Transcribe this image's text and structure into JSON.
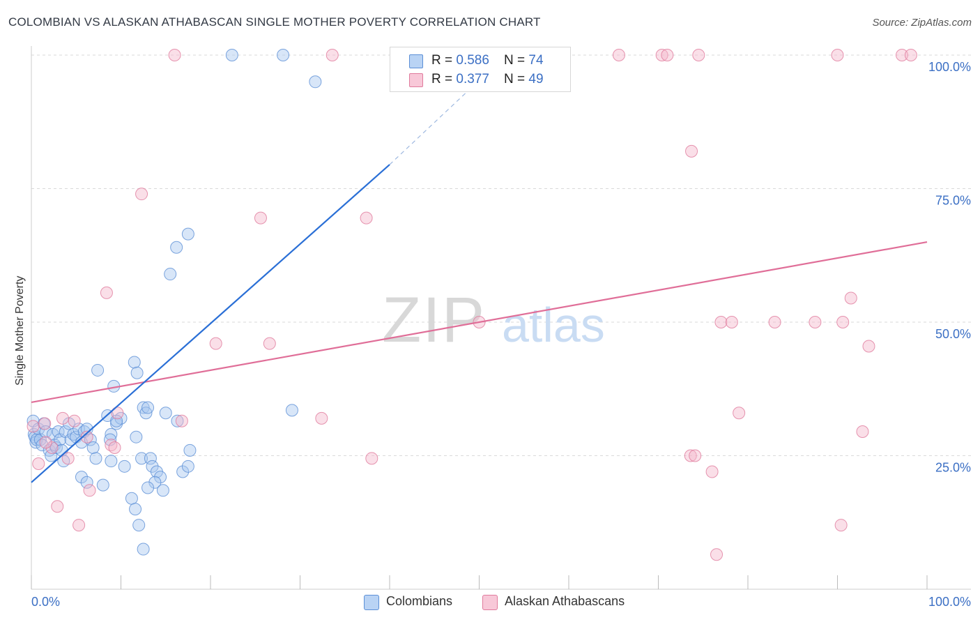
{
  "title": "COLOMBIAN VS ALASKAN ATHABASCAN SINGLE MOTHER POVERTY CORRELATION CHART",
  "source": "Source: ZipAtlas.com",
  "watermark": {
    "zip": "ZIP",
    "atlas": "atlas"
  },
  "legend": {
    "rows": [
      {
        "r_label": "R = ",
        "r_value": "0.586",
        "n_label": "N = ",
        "n_value": "74"
      },
      {
        "r_label": "R = ",
        "r_value": "0.377",
        "n_label": "N = ",
        "n_value": "49"
      }
    ]
  },
  "bottom_legend": {
    "series1": "Colombians",
    "series2": "Alaskan Athabascans"
  },
  "colors": {
    "blue_fill": "#a8c8f0",
    "blue_stroke": "#5b8fd6",
    "blue_line": "#2a6fd6",
    "pink_fill": "#f5b8cc",
    "pink_stroke": "#e07a9c",
    "pink_line": "#e06e98",
    "tick_label": "#3b6fc4",
    "grid": "#d9d9d9"
  },
  "chart_data": {
    "type": "scatter",
    "title": "COLOMBIAN VS ALASKAN ATHABASCAN SINGLE MOTHER POVERTY CORRELATION CHART",
    "xlabel": "",
    "ylabel": "Single Mother Poverty",
    "xlim": [
      0,
      100
    ],
    "ylim": [
      0,
      102
    ],
    "x_tick_labels": [
      "0.0%",
      "100.0%"
    ],
    "y_ticks": [
      25,
      50,
      75,
      100
    ],
    "y_tick_labels": [
      "25.0%",
      "50.0%",
      "75.0%",
      "100.0%"
    ],
    "grid": true,
    "legend_position": "top-center",
    "series": [
      {
        "name": "Colombians",
        "R": 0.586,
        "N": 74,
        "trend": {
          "x": [
            0,
            40
          ],
          "y": [
            20.0,
            79.5
          ],
          "dashed_to": {
            "x": 53,
            "y": 100
          }
        },
        "points": [
          [
            0.2,
            31.5
          ],
          [
            0.3,
            29
          ],
          [
            0.4,
            28.5
          ],
          [
            0.5,
            27.5
          ],
          [
            0.6,
            28
          ],
          [
            0.8,
            30
          ],
          [
            1,
            28
          ],
          [
            1.2,
            27
          ],
          [
            1.4,
            31
          ],
          [
            1.6,
            29.5
          ],
          [
            2,
            26
          ],
          [
            2.2,
            25
          ],
          [
            2.4,
            29
          ],
          [
            2.6,
            27
          ],
          [
            2.8,
            26.5
          ],
          [
            3,
            29.5
          ],
          [
            3.2,
            28
          ],
          [
            3.4,
            26
          ],
          [
            3.6,
            24
          ],
          [
            3.8,
            29.5
          ],
          [
            4.2,
            31
          ],
          [
            4.4,
            28
          ],
          [
            4.7,
            29
          ],
          [
            5,
            28.5
          ],
          [
            5.3,
            30
          ],
          [
            5.6,
            27.5
          ],
          [
            5.9,
            29.5
          ],
          [
            6.2,
            30
          ],
          [
            6.6,
            28
          ],
          [
            6.9,
            26.5
          ],
          [
            7.2,
            24.5
          ],
          [
            5.6,
            21
          ],
          [
            6.2,
            20
          ],
          [
            7.4,
            41
          ],
          [
            8,
            19.5
          ],
          [
            8.5,
            32.5
          ],
          [
            8.9,
            29
          ],
          [
            8.9,
            24
          ],
          [
            9.2,
            38
          ],
          [
            9.5,
            31
          ],
          [
            10,
            32
          ],
          [
            10.4,
            23
          ],
          [
            11.5,
            42.5
          ],
          [
            11.8,
            40.5
          ],
          [
            11.7,
            28.5
          ],
          [
            12.3,
            24.5
          ],
          [
            12.5,
            34
          ],
          [
            12.8,
            33
          ],
          [
            13,
            34
          ],
          [
            11.2,
            17
          ],
          [
            11.6,
            15
          ],
          [
            12,
            12
          ],
          [
            12.5,
            7.5
          ],
          [
            13.3,
            24.5
          ],
          [
            13.5,
            23
          ],
          [
            14.0,
            22
          ],
          [
            14.4,
            21
          ],
          [
            13.8,
            20
          ],
          [
            14.7,
            18.5
          ],
          [
            15.0,
            33
          ],
          [
            16.3,
            31.5
          ],
          [
            16.9,
            22
          ],
          [
            17.5,
            23
          ],
          [
            17.7,
            26
          ],
          [
            15.5,
            59
          ],
          [
            16.2,
            64
          ],
          [
            17.5,
            66.5
          ],
          [
            22.4,
            100
          ],
          [
            28.1,
            100
          ],
          [
            31.7,
            95
          ],
          [
            29.1,
            33.5
          ],
          [
            13,
            19
          ],
          [
            9.5,
            31.5
          ],
          [
            8.8,
            28
          ]
        ]
      },
      {
        "name": "Alaskan Athabascans",
        "R": 0.377,
        "N": 49,
        "trend": {
          "x": [
            0,
            100
          ],
          "y": [
            35.0,
            65.0
          ]
        },
        "points": [
          [
            0.2,
            30.5
          ],
          [
            0.8,
            23.5
          ],
          [
            1.5,
            31
          ],
          [
            2.3,
            26.5
          ],
          [
            2.9,
            15.5
          ],
          [
            3.5,
            32
          ],
          [
            4.1,
            24.5
          ],
          [
            4.8,
            31.5
          ],
          [
            5.3,
            12
          ],
          [
            6.2,
            28.5
          ],
          [
            6.5,
            18.5
          ],
          [
            8.4,
            55.5
          ],
          [
            8.9,
            27
          ],
          [
            9.3,
            26.5
          ],
          [
            9.6,
            33
          ],
          [
            12.3,
            74
          ],
          [
            16.0,
            100
          ],
          [
            16.8,
            31.5
          ],
          [
            20.6,
            46
          ],
          [
            25.6,
            69.5
          ],
          [
            26.6,
            46
          ],
          [
            32.4,
            32
          ],
          [
            33.6,
            100
          ],
          [
            37.4,
            69.5
          ],
          [
            38,
            24.5
          ],
          [
            50,
            50
          ],
          [
            65.6,
            100
          ],
          [
            70.4,
            100
          ],
          [
            71,
            100
          ],
          [
            73.6,
            25
          ],
          [
            73.7,
            82
          ],
          [
            74.1,
            25
          ],
          [
            74.5,
            100
          ],
          [
            76,
            22
          ],
          [
            76.5,
            6.5
          ],
          [
            77,
            50
          ],
          [
            78.2,
            50
          ],
          [
            79,
            33
          ],
          [
            83,
            50
          ],
          [
            87.5,
            50
          ],
          [
            90,
            100
          ],
          [
            90.4,
            12
          ],
          [
            90.6,
            50
          ],
          [
            91.5,
            54.5
          ],
          [
            92.8,
            29.5
          ],
          [
            93.5,
            45.5
          ],
          [
            97.2,
            100
          ],
          [
            98.2,
            100
          ],
          [
            1.6,
            27.5
          ]
        ]
      }
    ]
  }
}
